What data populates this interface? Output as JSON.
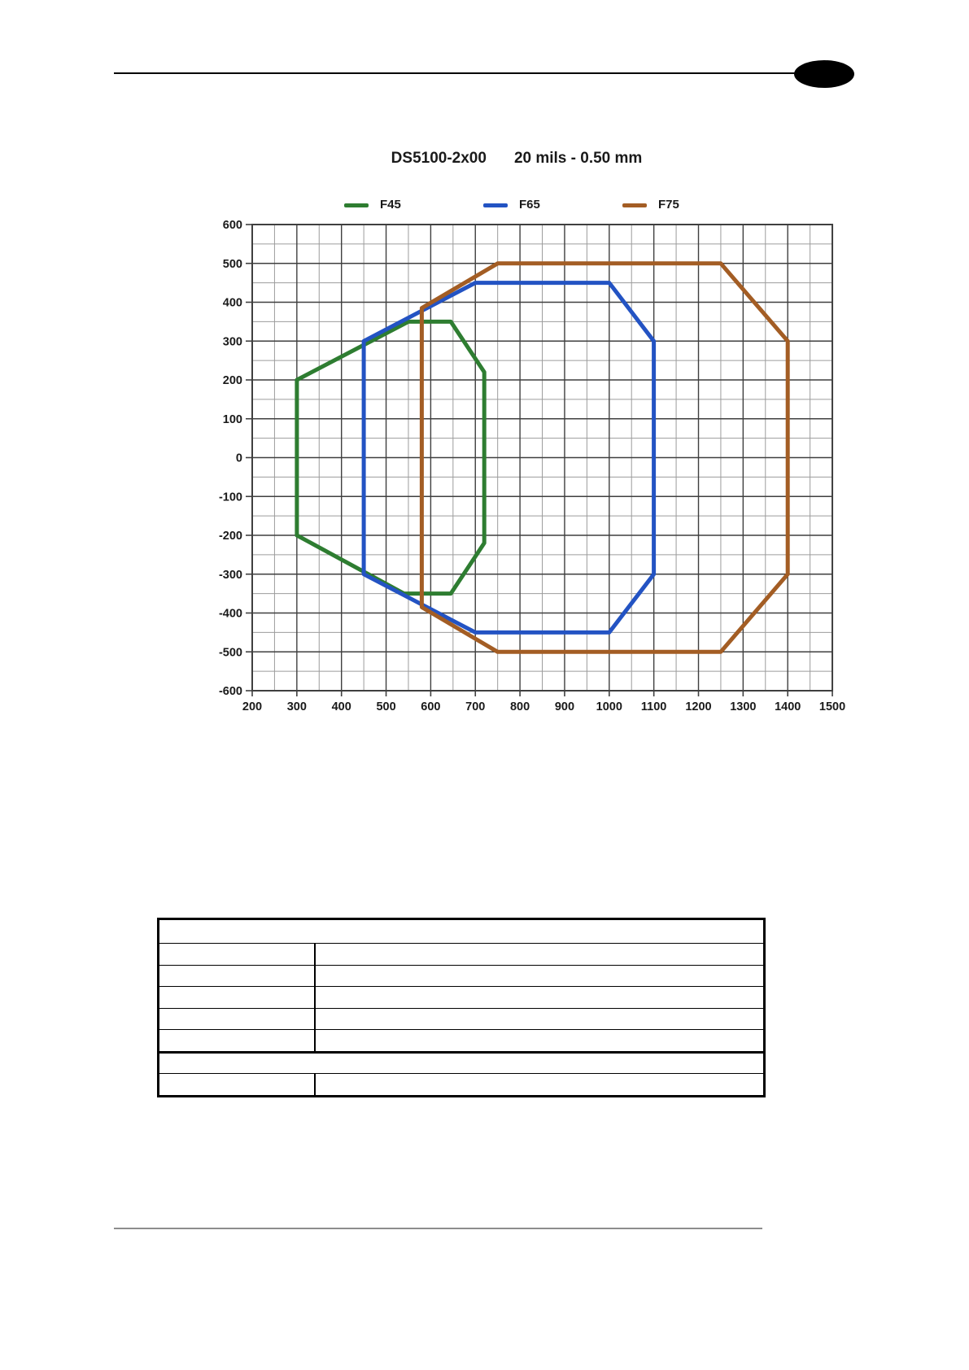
{
  "chart_data": {
    "type": "line",
    "title_model": "DS5100-2x00",
    "title_resolution": "20 mils - 0.50 mm",
    "xlim": [
      200,
      1500
    ],
    "ylim": [
      -600,
      600
    ],
    "x_major": 100,
    "x_minor": 50,
    "y_major": 100,
    "y_minor": 50,
    "grid": "on",
    "legend_position": "top",
    "x_ticks": [
      200,
      300,
      400,
      500,
      600,
      700,
      800,
      900,
      1000,
      1100,
      1200,
      1300,
      1400,
      1500
    ],
    "y_ticks": [
      600,
      500,
      400,
      300,
      200,
      100,
      0,
      -100,
      -200,
      -300,
      -400,
      -500,
      -600
    ],
    "axis_text_color": "#1a1a1a",
    "grid_major_color": "#3f3f3f",
    "grid_minor_color": "#9c9c9c",
    "series": [
      {
        "name": "F45",
        "color": "#2e7d31",
        "closed": true,
        "points": [
          [
            300,
            200
          ],
          [
            550,
            350
          ],
          [
            645,
            350
          ],
          [
            720,
            220
          ],
          [
            720,
            -220
          ],
          [
            645,
            -350
          ],
          [
            540,
            -350
          ],
          [
            300,
            -200
          ]
        ]
      },
      {
        "name": "F65",
        "color": "#2353c3",
        "closed": true,
        "points": [
          [
            450,
            300
          ],
          [
            700,
            450
          ],
          [
            1000,
            450
          ],
          [
            1100,
            300
          ],
          [
            1100,
            -300
          ],
          [
            1000,
            -450
          ],
          [
            700,
            -450
          ],
          [
            450,
            -300
          ]
        ]
      },
      {
        "name": "F75",
        "color": "#a35d24",
        "closed": true,
        "points": [
          [
            580,
            385
          ],
          [
            750,
            500
          ],
          [
            1250,
            500
          ],
          [
            1400,
            300
          ],
          [
            1400,
            -300
          ],
          [
            1250,
            -500
          ],
          [
            750,
            -500
          ],
          [
            580,
            -385
          ]
        ]
      }
    ]
  },
  "table": {
    "rows": [
      {
        "type": "full",
        "cells": [
          ""
        ]
      },
      {
        "type": "split",
        "cells": [
          "",
          ""
        ]
      },
      {
        "type": "split",
        "cells": [
          "",
          ""
        ]
      },
      {
        "type": "split",
        "cells": [
          "",
          ""
        ]
      },
      {
        "type": "split",
        "cells": [
          "",
          ""
        ]
      },
      {
        "type": "split",
        "cells": [
          "",
          ""
        ]
      },
      {
        "type": "full",
        "cells": [
          ""
        ]
      },
      {
        "type": "split",
        "cells": [
          "",
          ""
        ]
      }
    ]
  }
}
